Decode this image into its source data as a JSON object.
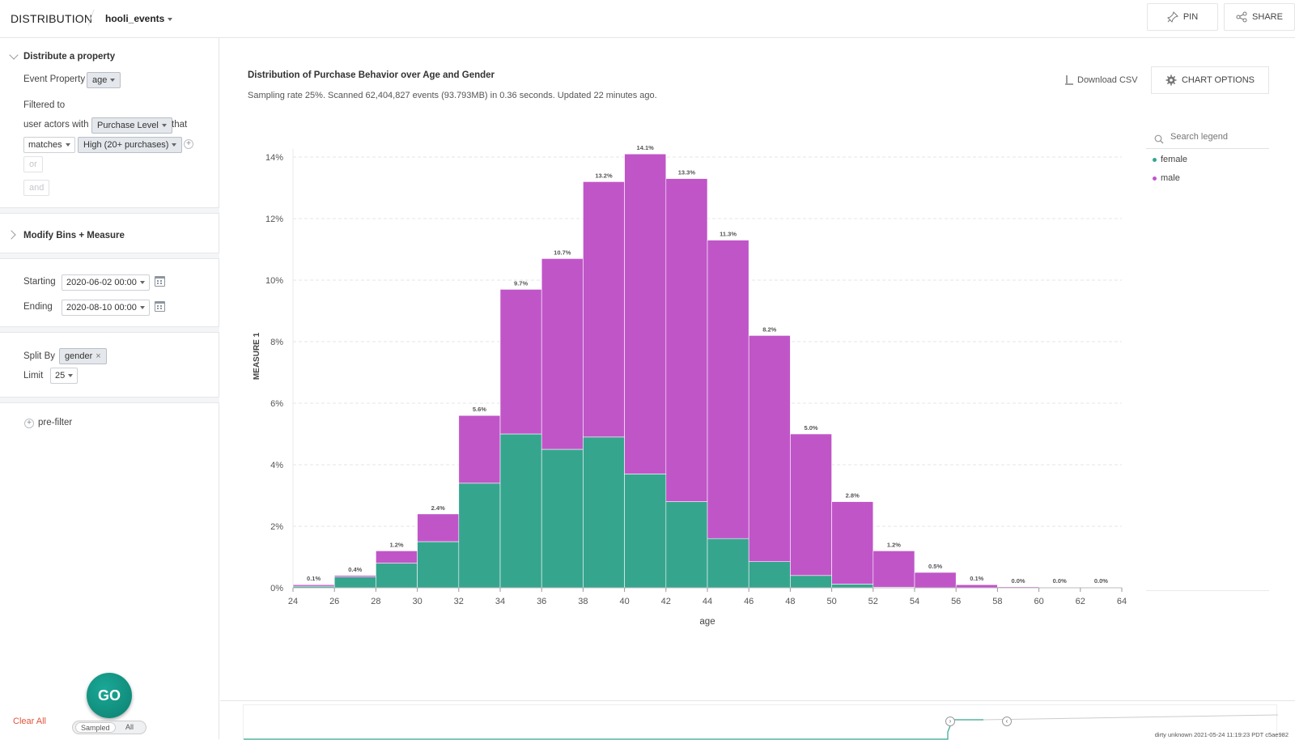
{
  "header": {
    "app_title": "DISTRIBUTION",
    "dataset": "hooli_events",
    "pin_label": "PIN",
    "share_label": "SHARE"
  },
  "sidebar": {
    "section1_title": "Distribute a property",
    "event_property_label": "Event Property",
    "event_property_value": "age",
    "filtered_to_label": "Filtered to",
    "user_actors_label": "user actors with",
    "filter_property": "Purchase Level",
    "that_label": "that",
    "filter_op": "matches",
    "filter_value": "High (20+ purchases)",
    "or_label": "or",
    "and_label": "and",
    "section2_title": "Modify Bins + Measure",
    "starting_label": "Starting",
    "starting_value": "2020-06-02 00:00",
    "ending_label": "Ending",
    "ending_value": "2020-08-10 00:00",
    "split_by_label": "Split By",
    "split_by_value": "gender",
    "limit_label": "Limit",
    "limit_value": "25",
    "prefilter_label": "pre-filter",
    "clear_all": "Clear All",
    "go_label": "GO",
    "sampled_label": "Sampled",
    "all_label": "All"
  },
  "main": {
    "title": "Distribution of Purchase Behavior over Age and Gender",
    "subtitle": "Sampling rate 25%. Scanned 62,404,827 events (93.793MB) in 0.36 seconds. Updated 22 minutes ago.",
    "download_csv": "Download CSV",
    "chart_options": "CHART OPTIONS",
    "legend_search_placeholder": "Search legend",
    "footer": "dirty unknown 2021-05-24 11:19:23 PDT c5ae982"
  },
  "colors": {
    "female": "#36a58e",
    "male": "#c055c8",
    "accent": "#0d8070",
    "danger": "#e0533b"
  },
  "chart_data": {
    "type": "bar",
    "stacked": true,
    "title": "Distribution of Purchase Behavior over Age and Gender",
    "xlabel": "age",
    "ylabel": "MEASURE 1",
    "bin_edges": [
      24,
      26,
      28,
      30,
      32,
      34,
      36,
      38,
      40,
      42,
      44,
      46,
      48,
      50,
      52,
      54,
      56,
      58,
      60,
      62,
      64
    ],
    "x_ticks": [
      24,
      26,
      28,
      30,
      32,
      34,
      36,
      38,
      40,
      42,
      44,
      46,
      48,
      50,
      52,
      54,
      56,
      58,
      60,
      62,
      64
    ],
    "ylim": [
      0,
      14.5
    ],
    "y_ticks": [
      0,
      2,
      4,
      6,
      8,
      10,
      12,
      14
    ],
    "y_tick_labels": [
      "0%",
      "2%",
      "4%",
      "6%",
      "8%",
      "10%",
      "12%",
      "14%"
    ],
    "totals_labels": [
      "0.1%",
      "0.4%",
      "1.2%",
      "2.4%",
      "5.6%",
      "9.7%",
      "10.7%",
      "13.2%",
      "14.1%",
      "13.3%",
      "11.3%",
      "8.2%",
      "5.0%",
      "2.8%",
      "1.2%",
      "0.5%",
      "0.1%",
      "0.0%",
      "0.0%",
      "0.0%"
    ],
    "series": [
      {
        "name": "female",
        "color": "#36a58e",
        "values": [
          0.05,
          0.35,
          0.8,
          1.5,
          3.4,
          5.0,
          4.5,
          4.9,
          3.7,
          2.8,
          1.6,
          0.85,
          0.4,
          0.12,
          0.02,
          0.0,
          0.0,
          0.0,
          0.0,
          0.0
        ]
      },
      {
        "name": "male",
        "color": "#c055c8",
        "values": [
          0.05,
          0.05,
          0.4,
          0.9,
          2.2,
          4.7,
          6.2,
          8.3,
          10.4,
          10.5,
          9.7,
          7.35,
          4.6,
          2.68,
          1.18,
          0.5,
          0.1,
          0.03,
          0.02,
          0.02
        ]
      }
    ],
    "legend": [
      "female",
      "male"
    ],
    "grid": true
  }
}
